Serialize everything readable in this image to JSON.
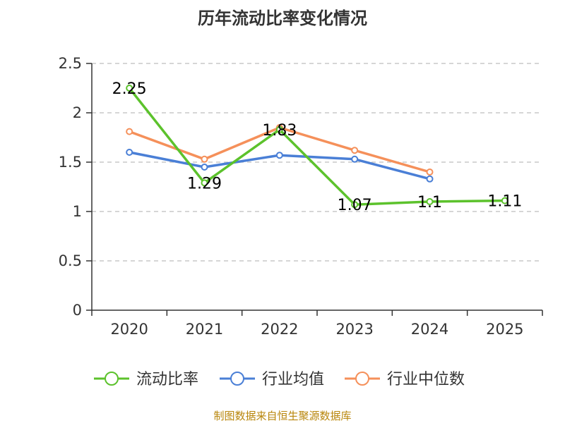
{
  "chart_data": {
    "type": "line",
    "title": "历年流动比率变化情况",
    "categories": [
      "2020",
      "2021",
      "2022",
      "2023",
      "2024",
      "2025"
    ],
    "y_ticks": [
      "0",
      "0.5",
      "1",
      "1.5",
      "2",
      "2.5"
    ],
    "ylim": [
      0,
      2.5
    ],
    "grid": true,
    "legend_position": "bottom",
    "series": [
      {
        "name": "流动比率",
        "color": "#5cc22c",
        "values": [
          2.25,
          1.29,
          1.83,
          1.07,
          1.1,
          1.11
        ],
        "labels": [
          "2.25",
          "1.29",
          "1.83",
          "1.07",
          "1.1",
          "1.11"
        ],
        "show_labels": true
      },
      {
        "name": "行业均值",
        "color": "#4a7fd6",
        "values": [
          1.6,
          1.45,
          1.57,
          1.53,
          1.33,
          null
        ],
        "show_labels": false
      },
      {
        "name": "行业中位数",
        "color": "#f5905a",
        "values": [
          1.81,
          1.53,
          1.85,
          1.62,
          1.4,
          null
        ],
        "show_labels": false
      }
    ],
    "source": "制图数据来自恒生聚源数据库"
  }
}
